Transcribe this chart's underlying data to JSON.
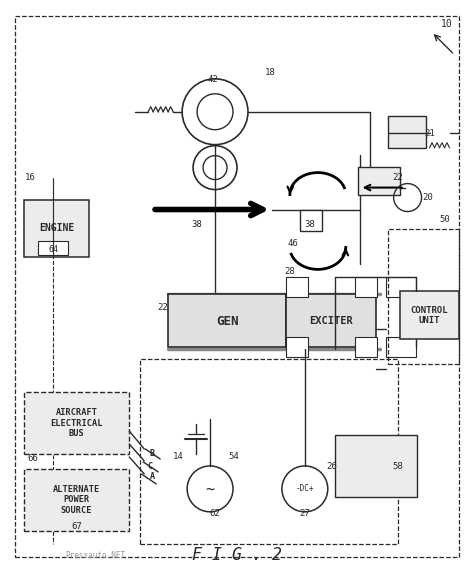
{
  "bg_color": "#ffffff",
  "line_color": "#2a2a2a",
  "title": "F I G . 2",
  "title_fontsize": 12,
  "watermark": "Pressauto.NET",
  "dc_label": "-DC+"
}
